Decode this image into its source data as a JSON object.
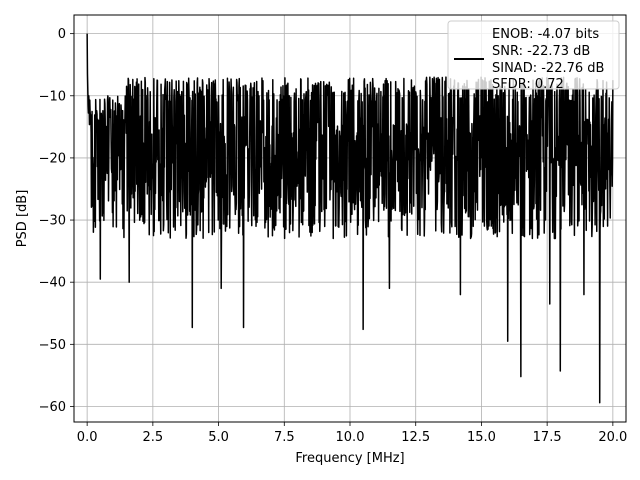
{
  "chart_data": {
    "type": "line",
    "xlabel": "Frequency [MHz]",
    "ylabel": "PSD [dB]",
    "xlim": [
      -0.5,
      20.5
    ],
    "ylim": [
      -62.5,
      3
    ],
    "xticks": [
      0.0,
      2.5,
      5.0,
      7.5,
      10.0,
      12.5,
      15.0,
      17.5,
      20.0
    ],
    "xtick_labels": [
      "0.0",
      "2.5",
      "5.0",
      "7.5",
      "10.0",
      "12.5",
      "15.0",
      "17.5",
      "20.0"
    ],
    "yticks": [
      0,
      -10,
      -20,
      -30,
      -40,
      -50,
      -60
    ],
    "ytick_labels": [
      "0",
      "−10",
      "−20",
      "−30",
      "−40",
      "−50",
      "−60"
    ],
    "grid": true,
    "legend_position": "top-right",
    "legend": [
      "ENOB: -4.07 bits",
      "SNR: -22.73 dB",
      "SINAD: -22.76 dB",
      "SFDR: 0.72"
    ],
    "series": [
      {
        "color": "#000000",
        "noise_floor_db": -20,
        "noise_band_db": [
          -30,
          -9
        ],
        "peak_db": 0,
        "x_range": [
          0,
          20
        ],
        "deep_nulls": [
          {
            "x": 0.5,
            "y": -39.5
          },
          {
            "x": 1.6,
            "y": -40
          },
          {
            "x": 4.0,
            "y": -47.3
          },
          {
            "x": 5.1,
            "y": -41
          },
          {
            "x": 5.95,
            "y": -47.3
          },
          {
            "x": 10.5,
            "y": -47.6
          },
          {
            "x": 11.5,
            "y": -41
          },
          {
            "x": 14.2,
            "y": -42
          },
          {
            "x": 16.0,
            "y": -49.5
          },
          {
            "x": 16.5,
            "y": -55.2
          },
          {
            "x": 17.6,
            "y": -43.5
          },
          {
            "x": 18.0,
            "y": -54.3
          },
          {
            "x": 18.9,
            "y": -42
          },
          {
            "x": 19.5,
            "y": -59.4
          }
        ]
      }
    ]
  }
}
